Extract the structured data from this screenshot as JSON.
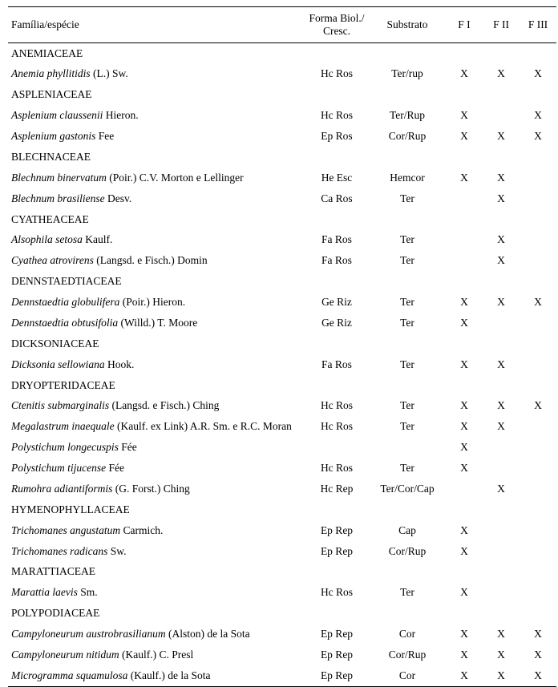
{
  "header": {
    "name": "Família/espécie",
    "forma": "Forma Biol./\nCresc.",
    "substrato": "Substrato",
    "f1": "F I",
    "f2": "F II",
    "f3": "F III"
  },
  "groups": [
    {
      "family": "ANEMIACEAE",
      "species": [
        {
          "sci": "Anemia phyllitidis",
          "auth": " (L.) Sw.",
          "forma": "Hc Ros",
          "sub": "Ter/rup",
          "f1": "X",
          "f2": "X",
          "f3": "X"
        }
      ]
    },
    {
      "family": "ASPLENIACEAE",
      "species": [
        {
          "sci": "Asplenium claussenii",
          "auth": " Hieron.",
          "forma": "Hc Ros",
          "sub": "Ter/Rup",
          "f1": "X",
          "f2": "",
          "f3": "X"
        },
        {
          "sci": "Asplenium gastonis",
          "auth": " Fee",
          "forma": "Ep Ros",
          "sub": "Cor/Rup",
          "f1": "X",
          "f2": "X",
          "f3": "X"
        }
      ]
    },
    {
      "family": "BLECHNACEAE",
      "species": [
        {
          "sci": "Blechnum binervatum",
          "auth": " (Poir.) C.V. Morton e Lellinger",
          "forma": "He Esc",
          "sub": "Hemcor",
          "f1": "X",
          "f2": "X",
          "f3": ""
        },
        {
          "sci": "Blechnum brasiliense",
          "auth": " Desv.",
          "forma": "Ca Ros",
          "sub": "Ter",
          "f1": "",
          "f2": "X",
          "f3": ""
        }
      ]
    },
    {
      "family": "CYATHEACEAE",
      "species": [
        {
          "sci": "Alsophila setosa",
          "auth": " Kaulf.",
          "forma": "Fa Ros",
          "sub": "Ter",
          "f1": "",
          "f2": "X",
          "f3": ""
        },
        {
          "sci": "Cyathea atrovirens",
          "auth": " (Langsd. e Fisch.) Domin",
          "forma": "Fa Ros",
          "sub": "Ter",
          "f1": "",
          "f2": "X",
          "f3": ""
        }
      ]
    },
    {
      "family": "DENNSTAEDTIACEAE",
      "species": [
        {
          "sci": "Dennstaedtia globulifera",
          "auth": " (Poir.) Hieron.",
          "forma": "Ge Riz",
          "sub": "Ter",
          "f1": "X",
          "f2": "X",
          "f3": "X"
        },
        {
          "sci": "Dennstaedtia obtusifolia",
          "auth": " (Willd.) T. Moore",
          "forma": "Ge Riz",
          "sub": "Ter",
          "f1": "X",
          "f2": "",
          "f3": ""
        }
      ]
    },
    {
      "family": "DICKSONIACEAE",
      "species": [
        {
          "sci": "Dicksonia sellowiana",
          "auth": " Hook.",
          "forma": "Fa Ros",
          "sub": "Ter",
          "f1": "X",
          "f2": "X",
          "f3": ""
        }
      ]
    },
    {
      "family": "DRYOPTERIDACEAE",
      "species": [
        {
          "sci": "Ctenitis submarginalis",
          "auth": " (Langsd. e Fisch.) Ching",
          "forma": "Hc Ros",
          "sub": "Ter",
          "f1": "X",
          "f2": "X",
          "f3": "X"
        },
        {
          "sci": "Megalastrum inaequale",
          "auth": " (Kaulf. ex Link) A.R. Sm. e R.C. Moran",
          "forma": "Hc Ros",
          "sub": "Ter",
          "f1": "X",
          "f2": "X",
          "f3": ""
        },
        {
          "sci": "Polystichum longecuspis",
          "auth": " Fée",
          "forma": "",
          "sub": "",
          "f1": "X",
          "f2": "",
          "f3": ""
        },
        {
          "sci": "Polystichum tijucense",
          "auth": " Fée",
          "forma": "Hc Ros",
          "sub": "Ter",
          "f1": "X",
          "f2": "",
          "f3": ""
        },
        {
          "sci": "Rumohra adiantiformis",
          "auth": " (G. Forst.) Ching",
          "forma": "Hc Rep",
          "sub": "Ter/Cor/Cap",
          "f1": "",
          "f2": "X",
          "f3": ""
        }
      ]
    },
    {
      "family": "HYMENOPHYLLACEAE",
      "species": [
        {
          "sci": "Trichomanes angustatum",
          "auth": " Carmich.",
          "forma": "Ep Rep",
          "sub": "Cap",
          "f1": "X",
          "f2": "",
          "f3": ""
        },
        {
          "sci": "Trichomanes radicans",
          "auth": " Sw.",
          "forma": "Ep Rep",
          "sub": "Cor/Rup",
          "f1": "X",
          "f2": "",
          "f3": ""
        }
      ]
    },
    {
      "family": "MARATTIACEAE",
      "species": [
        {
          "sci": "Marattia laevis",
          "auth": " Sm.",
          "forma": "Hc Ros",
          "sub": "Ter",
          "f1": "X",
          "f2": "",
          "f3": ""
        }
      ]
    },
    {
      "family": "POLYPODIACEAE",
      "species": [
        {
          "sci": "Campyloneurum austrobrasilianum",
          "auth": " (Alston) de la Sota",
          "forma": "Ep Rep",
          "sub": "Cor",
          "f1": "X",
          "f2": "X",
          "f3": "X"
        },
        {
          "sci": "Campyloneurum nitidum",
          "auth": " (Kaulf.) C. Presl",
          "forma": "Ep Rep",
          "sub": "Cor/Rup",
          "f1": "X",
          "f2": "X",
          "f3": "X"
        },
        {
          "sci": "Microgramma squamulosa",
          "auth": " (Kaulf.) de la Sota",
          "forma": "Ep Rep",
          "sub": "Cor",
          "f1": "X",
          "f2": "X",
          "f3": "X"
        }
      ]
    }
  ]
}
